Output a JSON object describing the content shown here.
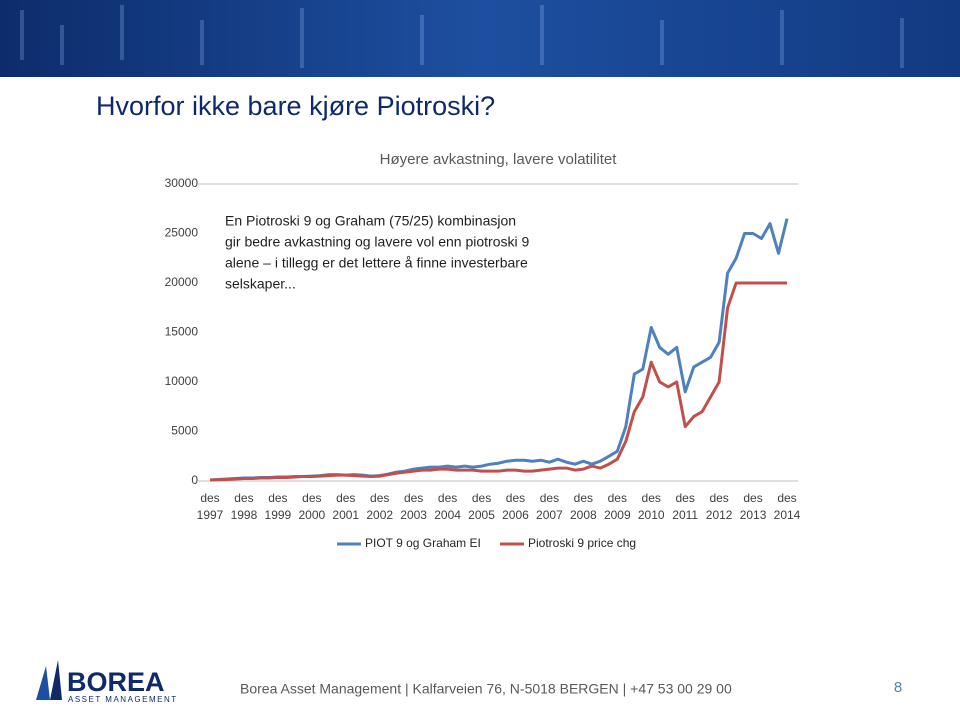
{
  "slide": {
    "title": "Hvorfor ikke bare kjøre Piotroski?",
    "logo": {
      "name": "BOREA",
      "tagline": "ASSET MANAGEMENT"
    },
    "footer": "Borea Asset Management | Kalfarveien 76, N-5018 BERGEN | +47 53 00 29 00",
    "page_number": "8"
  },
  "chart_data": {
    "type": "line",
    "title": "Høyere avkastning, lavere volatilitet",
    "annotation": [
      "En Piotroski 9 og Graham (75/25) kombinasjon",
      "gir bedre avkastning og lavere vol enn piotroski 9",
      "alene – i tillegg er det lettere å finne investerbare",
      "selskaper..."
    ],
    "categories": [
      "des 1997",
      null,
      null,
      null,
      "des 1998",
      null,
      null,
      null,
      "des 1999",
      null,
      null,
      null,
      "des 2000",
      null,
      null,
      null,
      "des 2001",
      null,
      null,
      null,
      "des 2002",
      null,
      null,
      null,
      "des 2003",
      null,
      null,
      null,
      "des 2004",
      null,
      null,
      null,
      "des 2005",
      null,
      null,
      null,
      "des 2006",
      null,
      null,
      null,
      "des 2007",
      null,
      null,
      null,
      "des 2008",
      null,
      null,
      null,
      "des 2009",
      null,
      null,
      null,
      "des 2010",
      null,
      null,
      null,
      "des 2011",
      null,
      null,
      null,
      "des 2012",
      null,
      null,
      null,
      "des 2013",
      null,
      null,
      null,
      "des 2014"
    ],
    "series": [
      {
        "name": "PIOT 9 og Graham EI",
        "color": "#4f81bd",
        "values": [
          100,
          150,
          200,
          250,
          300,
          300,
          350,
          350,
          400,
          400,
          450,
          450,
          500,
          550,
          650,
          650,
          600,
          650,
          600,
          500,
          550,
          700,
          900,
          1000,
          1200,
          1300,
          1400,
          1400,
          1500,
          1400,
          1500,
          1400,
          1500,
          1700,
          1800,
          2000,
          2100,
          2100,
          2000,
          2100,
          1900,
          2200,
          1900,
          1700,
          2000,
          1700,
          2000,
          2500,
          3000,
          5500,
          10800,
          11300,
          15500,
          13500,
          12800,
          13500,
          9000,
          11500,
          12000,
          12500,
          14000,
          21000,
          22500,
          25000,
          25000,
          24500,
          26000,
          23000,
          26500
        ]
      },
      {
        "name": "Piotroski 9 price chg",
        "color": "#c0504d",
        "values": [
          100,
          120,
          150,
          200,
          250,
          250,
          300,
          300,
          350,
          350,
          400,
          450,
          450,
          500,
          550,
          600,
          600,
          550,
          500,
          450,
          500,
          650,
          800,
          900,
          1000,
          1100,
          1100,
          1200,
          1200,
          1100,
          1100,
          1100,
          1000,
          1000,
          1000,
          1100,
          1100,
          1000,
          1000,
          1100,
          1200,
          1300,
          1300,
          1100,
          1200,
          1500,
          1300,
          1700,
          2200,
          4000,
          7000,
          8500,
          12000,
          10000,
          9500,
          10000,
          5500,
          6500,
          7000,
          8500,
          10000,
          17500,
          20000,
          20000,
          20000,
          20000,
          20000,
          20000,
          20000
        ]
      }
    ],
    "ylim": [
      0,
      30000
    ],
    "yticks": [
      0,
      5000,
      10000,
      15000,
      20000,
      25000,
      30000
    ],
    "grid": false
  }
}
